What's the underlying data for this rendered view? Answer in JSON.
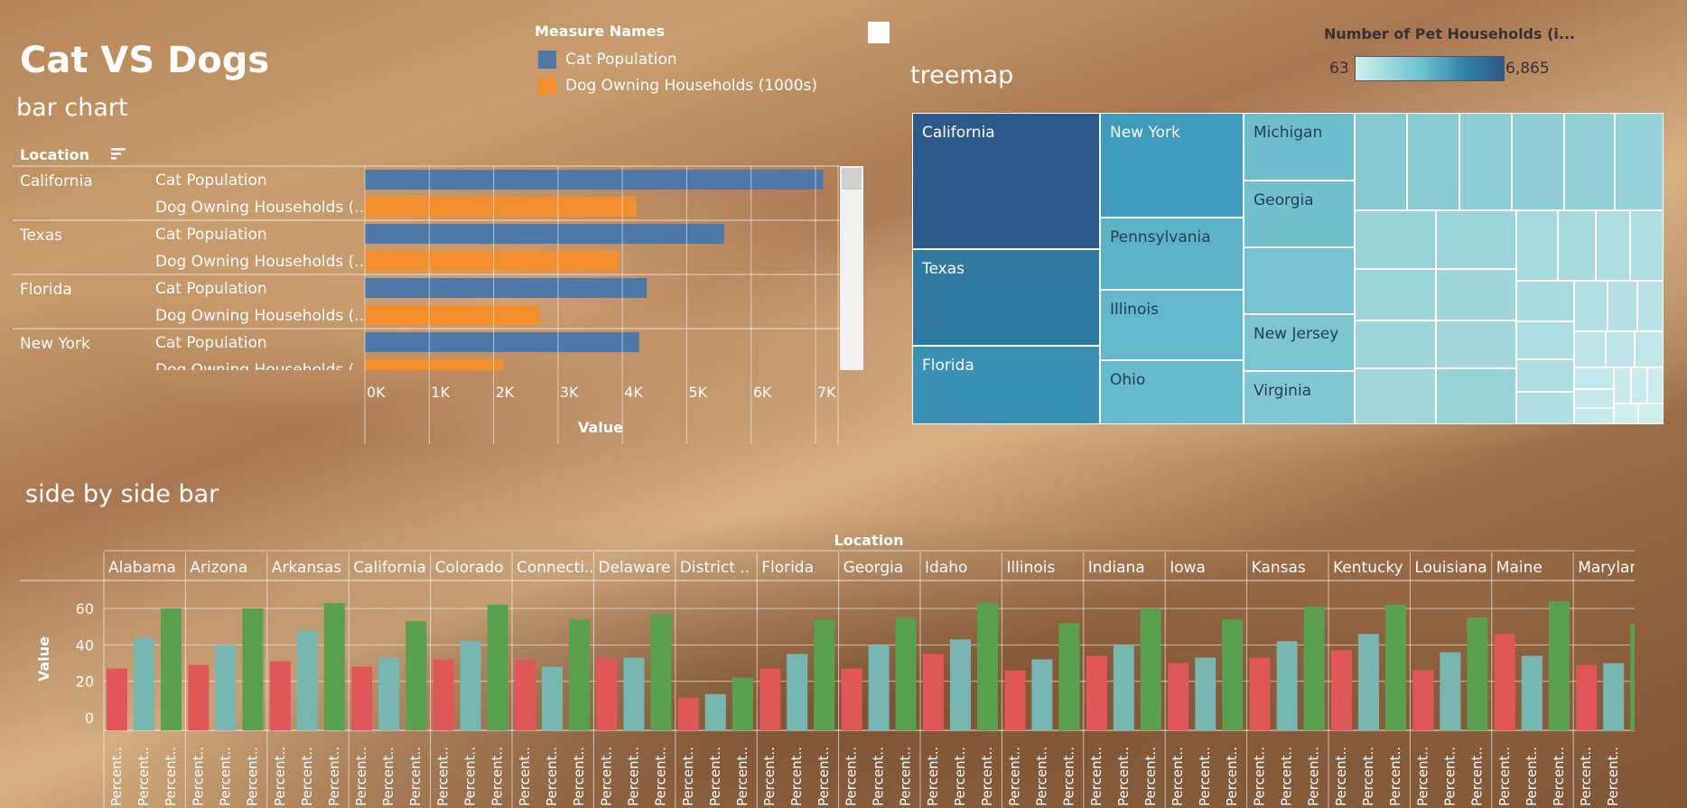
{
  "dashboard": {
    "title": "Cat VS Dogs"
  },
  "legend": {
    "title": "Measure Names",
    "items": [
      {
        "label": "Cat Population",
        "color": "#4e79a7"
      },
      {
        "label": "Dog Owning Households (1000s)",
        "color": "#f28e2b"
      }
    ]
  },
  "color_legend": {
    "title": "Number of Pet Households (i...",
    "min": "63",
    "max": "6,865"
  },
  "chart_data": [
    {
      "type": "bar",
      "title": "bar chart",
      "row_header": "Location",
      "measures": [
        "Cat Population",
        "Dog Owning Households (..."
      ],
      "rows": [
        {
          "location": "California",
          "values": [
            7120,
            4220
          ]
        },
        {
          "location": "Texas",
          "values": [
            5580,
            3950
          ]
        },
        {
          "location": "Florida",
          "values": [
            4380,
            2710
          ]
        },
        {
          "location": "New York",
          "values": [
            4260,
            2150
          ]
        }
      ],
      "xlabel": "Value",
      "xticks": [
        "0K",
        "1K",
        "2K",
        "3K",
        "4K",
        "5K",
        "6K",
        "7K"
      ],
      "xlim": [
        0,
        7500
      ]
    },
    {
      "type": "heatmap",
      "subtype": "treemap",
      "title": "treemap",
      "labeled": [
        {
          "name": "California",
          "color": "#2b5a8a"
        },
        {
          "name": "Texas",
          "color": "#2f7aa3"
        },
        {
          "name": "Florida",
          "color": "#3a92b3"
        },
        {
          "name": "New York",
          "color": "#3e9bba"
        },
        {
          "name": "Pennsylvania",
          "color": "#5bb3c7"
        },
        {
          "name": "Illinois",
          "color": "#62b7ca"
        },
        {
          "name": "Ohio",
          "color": "#66bacb"
        },
        {
          "name": "Michigan",
          "color": "#6ebdcd"
        },
        {
          "name": "Georgia",
          "color": "#72c0ce"
        },
        {
          "name": "New Jersey",
          "color": "#7bc5d1"
        },
        {
          "name": "Virginia",
          "color": "#80c7d3"
        }
      ]
    },
    {
      "type": "bar",
      "title": "side by side bar",
      "column_header": "Location",
      "ylabel": "Value",
      "yticks": [
        "0",
        "20",
        "40",
        "60"
      ],
      "ylim": [
        0,
        70
      ],
      "bar_label": "Percent..",
      "series_colors": [
        "#e15759",
        "#76b7b2",
        "#59a14f"
      ],
      "columns": [
        {
          "location": "Alabama",
          "values": [
            27,
            44,
            60
          ]
        },
        {
          "location": "Arizona",
          "values": [
            29,
            40,
            60
          ]
        },
        {
          "location": "Arkansas",
          "values": [
            31,
            48,
            63
          ]
        },
        {
          "location": "California",
          "values": [
            28,
            33,
            53
          ]
        },
        {
          "location": "Colorado",
          "values": [
            32,
            42,
            62
          ]
        },
        {
          "location": "Connecti..",
          "values": [
            32,
            28,
            54
          ]
        },
        {
          "location": "Delaware",
          "values": [
            33,
            33,
            57
          ]
        },
        {
          "location": "District ..",
          "values": [
            11,
            13,
            22
          ]
        },
        {
          "location": "Florida",
          "values": [
            27,
            35,
            54
          ]
        },
        {
          "location": "Georgia",
          "values": [
            27,
            40,
            55
          ]
        },
        {
          "location": "Idaho",
          "values": [
            35,
            43,
            63
          ]
        },
        {
          "location": "Illinois",
          "values": [
            26,
            32,
            52
          ]
        },
        {
          "location": "Indiana",
          "values": [
            34,
            40,
            60
          ]
        },
        {
          "location": "Iowa",
          "values": [
            30,
            33,
            54
          ]
        },
        {
          "location": "Kansas",
          "values": [
            33,
            42,
            61
          ]
        },
        {
          "location": "Kentucky",
          "values": [
            37,
            46,
            62
          ]
        },
        {
          "location": "Louisiana",
          "values": [
            26,
            36,
            55
          ]
        },
        {
          "location": "Maine",
          "values": [
            46,
            34,
            64
          ]
        },
        {
          "location": "Marylan",
          "values": [
            29,
            30,
            52
          ]
        }
      ]
    }
  ]
}
